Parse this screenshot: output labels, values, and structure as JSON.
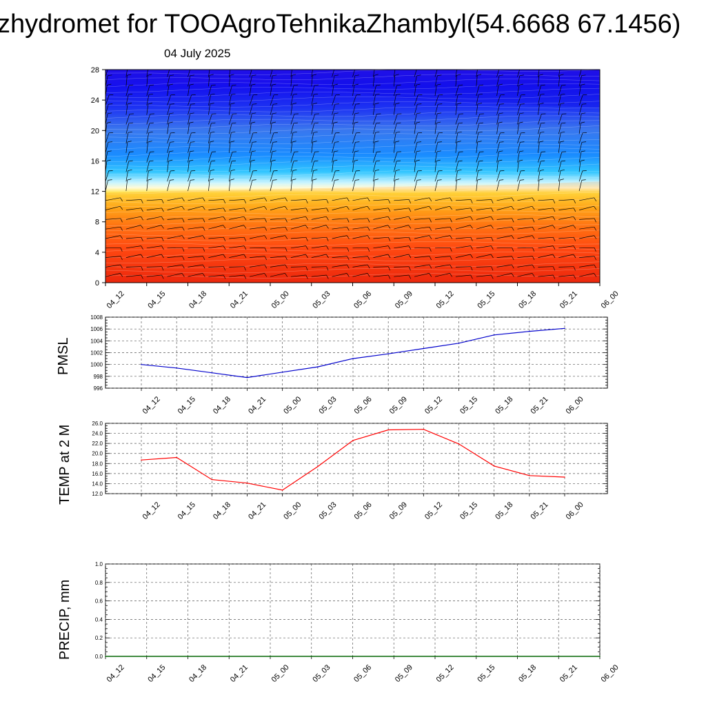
{
  "header": {
    "title": "zhydromet for TOOAgroTehnikaZhambyl(54.6668 67.1456)",
    "date": "04 July 2025"
  },
  "colors": {
    "pmsl_line": "#0000cc",
    "temp_line": "#ff0000",
    "precip_line": "#006400",
    "grid": "#555555",
    "barb": "#000000"
  },
  "chart_data": [
    {
      "type": "heatmap",
      "title": "",
      "xlabel": "",
      "ylabel": "",
      "time_labels": [
        "04_12",
        "04_15",
        "04_18",
        "04_21",
        "05_00",
        "05_03",
        "05_06",
        "05_09",
        "05_12",
        "05_15",
        "05_18",
        "05_21",
        "06_00"
      ],
      "yticks": [
        0,
        4,
        8,
        12,
        16,
        20,
        24,
        28
      ],
      "ylim": [
        0,
        28
      ],
      "freezing_level": [
        11.8,
        11.9,
        12.1,
        12.2,
        12.3,
        12.4,
        12.5,
        12.6,
        12.7,
        12.8,
        12.9,
        13.1,
        13.3
      ],
      "colormap": "red-orange-yellow below freezing level, cyan-blue-purple above",
      "overlay": "wind barbs"
    },
    {
      "type": "line",
      "ylabel": "PMSL",
      "categories": [
        "04_12",
        "04_15",
        "04_18",
        "04_21",
        "05_00",
        "05_03",
        "05_06",
        "05_09",
        "05_12",
        "05_15",
        "05_18",
        "05_21",
        "06_00"
      ],
      "values": [
        1000.0,
        999.4,
        998.6,
        997.8,
        998.7,
        999.6,
        1001.0,
        1001.8,
        1002.7,
        1003.6,
        1005.0,
        1005.6,
        1006.1
      ],
      "yticks": [
        996,
        998,
        1000,
        1002,
        1004,
        1006,
        1008
      ],
      "ylim": [
        996,
        1008
      ],
      "grid": true
    },
    {
      "type": "line",
      "ylabel": "TEMP at 2 M",
      "categories": [
        "04_12",
        "04_15",
        "04_18",
        "04_21",
        "05_00",
        "05_03",
        "05_06",
        "05_09",
        "05_12",
        "05_15",
        "05_18",
        "05_21",
        "06_00"
      ],
      "values": [
        18.7,
        19.2,
        14.8,
        14.1,
        12.7,
        17.4,
        22.6,
        24.7,
        24.8,
        21.9,
        17.5,
        15.6,
        15.3
      ],
      "yticks": [
        "12.0",
        "14.0",
        "16.0",
        "18.0",
        "20.0",
        "22.0",
        "24.0",
        "26.0"
      ],
      "ylim": [
        12,
        26
      ],
      "grid": true
    },
    {
      "type": "line",
      "ylabel": "PRECIP, mm",
      "categories": [
        "04_12",
        "04_15",
        "04_18",
        "04_21",
        "05_00",
        "05_03",
        "05_06",
        "05_09",
        "05_12",
        "05_15",
        "05_18",
        "05_21",
        "06_00"
      ],
      "values": [
        0,
        0,
        0,
        0,
        0,
        0,
        0,
        0,
        0,
        0,
        0,
        0,
        0
      ],
      "yticks": [
        "0.0",
        "0.2",
        "0.4",
        "0.6",
        "0.8",
        "1.0"
      ],
      "ylim": [
        0,
        1
      ],
      "grid": true
    }
  ]
}
